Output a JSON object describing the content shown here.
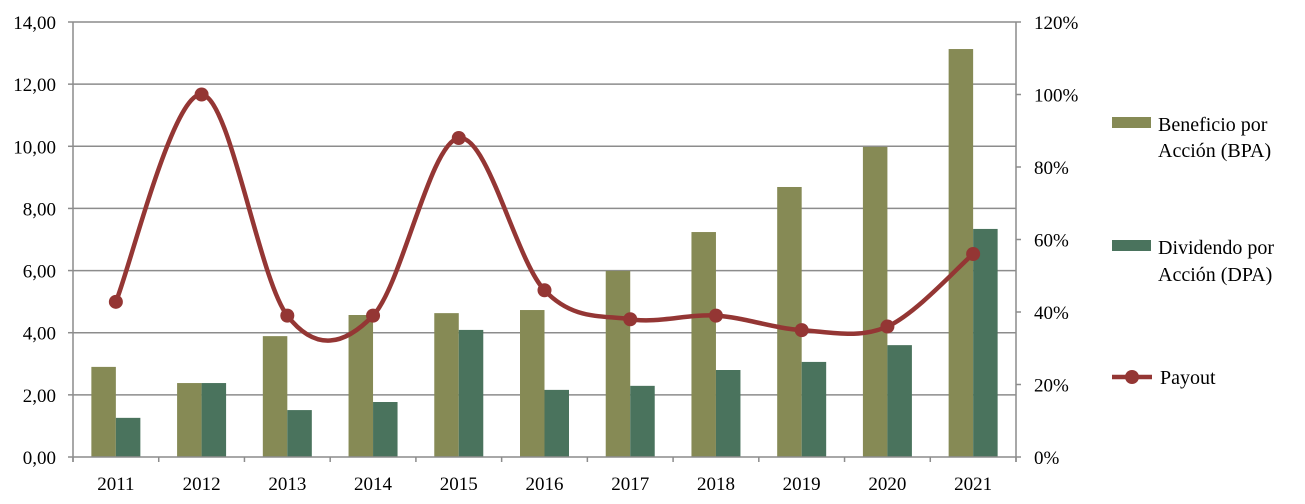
{
  "chart_data": {
    "type": "bar",
    "title": "",
    "categories": [
      "2011",
      "2012",
      "2013",
      "2014",
      "2015",
      "2016",
      "2017",
      "2018",
      "2019",
      "2020",
      "2021"
    ],
    "series": [
      {
        "name": "Beneficio por Acción (BPA)",
        "legend_lines": [
          "Beneficio por",
          "Acción (BPA)"
        ],
        "type": "bar",
        "axis": "left",
        "color": "#868a55",
        "values": [
          2.9,
          2.38,
          3.89,
          4.57,
          4.63,
          4.73,
          5.99,
          7.24,
          8.69,
          9.98,
          13.13
        ]
      },
      {
        "name": "Dividendo por Acción (DPA)",
        "legend_lines": [
          "Dividendo por",
          "Acción (DPA)"
        ],
        "type": "bar",
        "axis": "left",
        "color": "#4a735d",
        "values": [
          1.26,
          2.38,
          1.51,
          1.77,
          4.09,
          2.16,
          2.29,
          2.8,
          3.06,
          3.6,
          7.34
        ]
      },
      {
        "name": "Payout",
        "legend_lines": [
          "Payout"
        ],
        "type": "line",
        "smooth": true,
        "markers": true,
        "axis": "right",
        "color": "#943634",
        "values": [
          42.8,
          100,
          39,
          39,
          88,
          46,
          38,
          39,
          35,
          36,
          56
        ]
      }
    ],
    "y_left": {
      "min": 0,
      "max": 14,
      "step": 2,
      "ticks": [
        "0,00",
        "2,00",
        "4,00",
        "6,00",
        "8,00",
        "10,00",
        "12,00",
        "14,00"
      ]
    },
    "y_right": {
      "min": 0,
      "max": 120,
      "step": 20,
      "ticks": [
        "0%",
        "20%",
        "40%",
        "60%",
        "80%",
        "100%",
        "120%"
      ]
    },
    "xlabel": "",
    "ylabel": "",
    "grid": true,
    "legend": "right"
  }
}
